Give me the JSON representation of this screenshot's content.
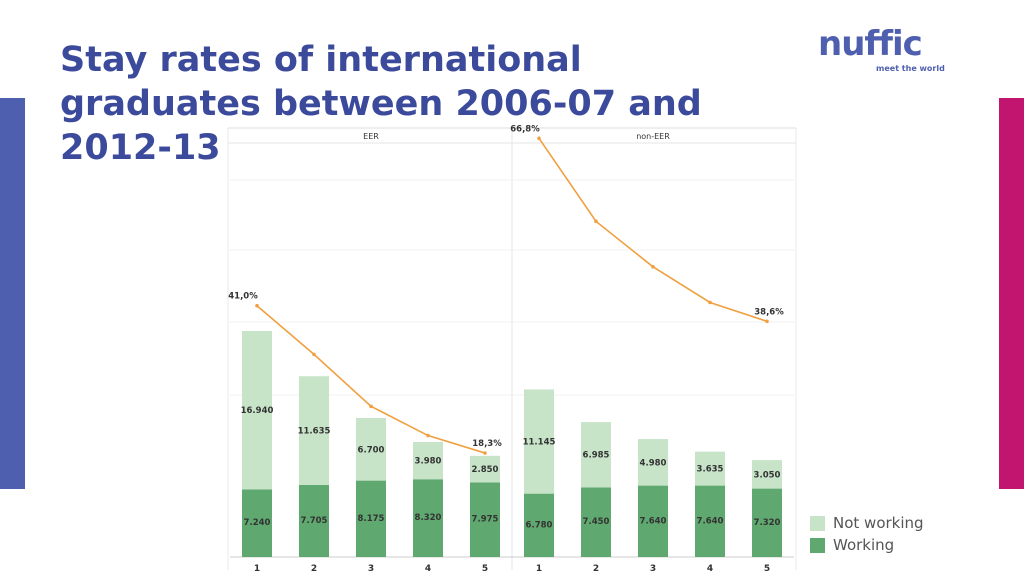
{
  "title": "Stay rates of international graduates between 2006-07 and 2012-13",
  "logo": {
    "word": "nuffic",
    "tagline": "meet the world"
  },
  "colors": {
    "working": "#5fa86f",
    "not_working": "#c7e4c9",
    "line": "#f0a040",
    "title": "#3c4a9c",
    "left_accent": "#4f5faf",
    "right_accent": "#c2156f"
  },
  "chart_data": {
    "type": "bar",
    "stacked": true,
    "panels": [
      {
        "label": "EER",
        "categories": [
          "1",
          "2",
          "3",
          "4",
          "5"
        ],
        "series": [
          {
            "name": "Working",
            "values": [
              7240,
              7705,
              8175,
              8320,
              7975
            ],
            "labels": [
              "7.240",
              "7.705",
              "8.175",
              "8.320",
              "7.975"
            ]
          },
          {
            "name": "Not working",
            "values": [
              16940,
              11635,
              6700,
              3980,
              2850
            ],
            "labels": [
              "16.940",
              "11.635",
              "6.700",
              "3.980",
              "2.850"
            ]
          }
        ],
        "line": {
          "values": [
            41.0,
            33.5,
            25.5,
            21.0,
            18.3
          ],
          "labels": [
            "41,0%",
            "",
            "",
            "",
            "18,3%"
          ]
        }
      },
      {
        "label": "non-EER",
        "categories": [
          "1",
          "2",
          "3",
          "4",
          "5"
        ],
        "series": [
          {
            "name": "Working",
            "values": [
              6780,
              7450,
              7640,
              7640,
              7320
            ],
            "labels": [
              "6.780",
              "7.450",
              "7.640",
              "7.640",
              "7.320"
            ]
          },
          {
            "name": "Not working",
            "values": [
              11145,
              6985,
              4980,
              3635,
              3050
            ],
            "labels": [
              "11.145",
              "6.985",
              "4.980",
              "3.635",
              "3.050"
            ]
          }
        ],
        "line": {
          "values": [
            66.8,
            54.0,
            47.0,
            41.5,
            38.6
          ],
          "labels": [
            "66,8%",
            "",
            "",
            "",
            "38,6%"
          ]
        }
      }
    ],
    "legend": {
      "position": "bottom-right",
      "items": [
        {
          "name": "Not working"
        },
        {
          "name": "Working"
        }
      ]
    }
  }
}
